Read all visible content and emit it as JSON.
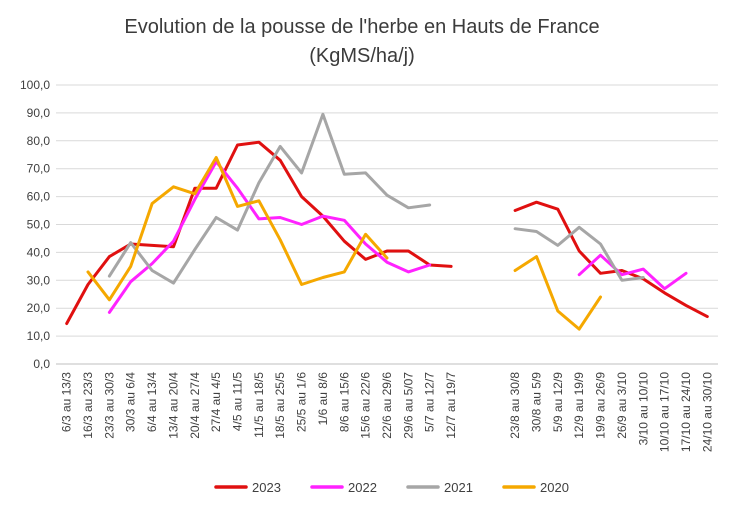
{
  "chart_data": {
    "type": "line",
    "title": "Evolution de la pousse de l'herbe en Hauts de France",
    "subtitle": "(KgMS/ha/j)",
    "xlabel": "",
    "ylabel": "",
    "ylim": [
      0,
      100
    ],
    "yticks": [
      "0,0",
      "10,0",
      "20,0",
      "30,0",
      "40,0",
      "50,0",
      "60,0",
      "70,0",
      "80,0",
      "90,0",
      "100,0"
    ],
    "grid": true,
    "legend_position": "bottom",
    "categories": [
      "6/3 au 13/3",
      "16/3 au 23/3",
      "23/3 au 30/3",
      "30/3 au 6/4",
      "6/4 au 13/4",
      "13/4 au 20/4",
      "20/4 au 27/4",
      "27/4 au 4/5",
      "4/5 au 11/5",
      "11/5 au 18/5",
      "18/5 au 25/5",
      "25/5 au 1/6",
      "1/6 au 8/6",
      "8/6 au 15/6",
      "15/6 au 22/6",
      "22/6 au 29/6",
      "29/6 au 5/07",
      "5/7 au 12/7",
      "12/7 au 19/7",
      "",
      "",
      "23/8 au 30/8",
      "30/8 au 5/9",
      "5/9 au 12/9",
      "12/9 au 19/9",
      "19/9 au 26/9",
      "26/9 au 3/10",
      "3/10 au 10/10",
      "10/10 au 17/10",
      "17/10 au 24/10",
      "24/10 au 30/10"
    ],
    "series": [
      {
        "name": "2023",
        "color": "#e01010",
        "values": [
          14.5,
          28.5,
          38.5,
          43,
          42.5,
          42,
          63,
          63,
          78.5,
          79.5,
          73,
          60,
          53,
          44,
          37.5,
          40.5,
          40.5,
          35.5,
          35,
          null,
          null,
          55,
          58,
          55.5,
          40.5,
          32.5,
          33.5,
          30.5,
          25.5,
          21,
          17
        ]
      },
      {
        "name": "2022",
        "color": "#ff22ff",
        "values": [
          null,
          null,
          18.5,
          29.5,
          36,
          44,
          59,
          72.5,
          63,
          52,
          52.5,
          50,
          53,
          51.5,
          43,
          36.5,
          33,
          35.5,
          null,
          null,
          null,
          null,
          null,
          null,
          32,
          39,
          32,
          34,
          27,
          32.5,
          null
        ]
      },
      {
        "name": "2021",
        "color": "#a6a6a6",
        "values": [
          null,
          null,
          31.5,
          43.5,
          33.5,
          29,
          41,
          52.5,
          48,
          65,
          78,
          68.5,
          89.5,
          68,
          68.5,
          60.5,
          56,
          57,
          null,
          null,
          null,
          48.5,
          47.5,
          42.5,
          49,
          43,
          30,
          31,
          null,
          null,
          null
        ]
      },
      {
        "name": "2020",
        "color": "#f5a800",
        "values": [
          null,
          33,
          23,
          35,
          57.5,
          63.5,
          61,
          74,
          56.5,
          58.5,
          44.5,
          28.5,
          31,
          33,
          46.5,
          38,
          null,
          null,
          null,
          null,
          null,
          33.5,
          38.5,
          19,
          12.5,
          24,
          null,
          null,
          null,
          null,
          null
        ]
      }
    ]
  }
}
